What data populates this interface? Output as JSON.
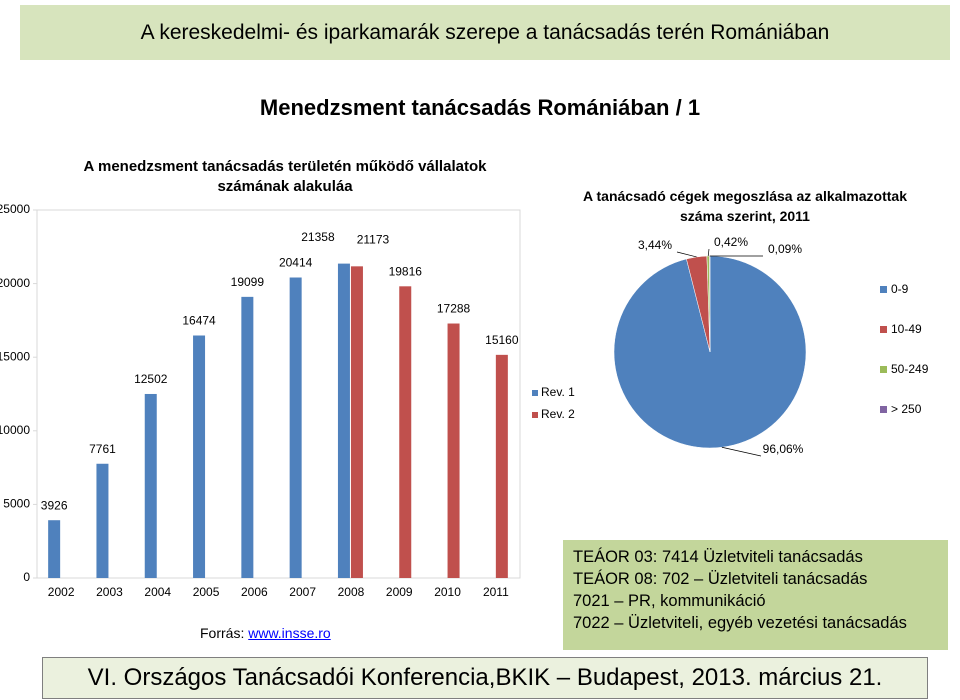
{
  "header": "A kereskedelmi- és iparkamarák szerepe a tanácsadás terén Romániában",
  "slide_title": "Menedzsment tanácsadás Romániában / 1",
  "chart_data": [
    {
      "type": "bar",
      "title": "A menedzsment tanácsadás területén működő vállalatok számának alakuláa",
      "categories": [
        "2002",
        "2003",
        "2004",
        "2005",
        "2006",
        "2007",
        "2008",
        "2009",
        "2010",
        "2011"
      ],
      "series": [
        {
          "name": "Rev. 1",
          "color": "#4f81bd",
          "values": [
            3926,
            7761,
            12502,
            16474,
            19099,
            20414,
            21358,
            null,
            null,
            null
          ]
        },
        {
          "name": "Rev. 2",
          "color": "#c0504d",
          "values": [
            null,
            null,
            null,
            null,
            null,
            null,
            21173,
            19816,
            17288,
            15160
          ]
        }
      ],
      "ylim": [
        0,
        25000
      ],
      "yticks": [
        0,
        5000,
        10000,
        15000,
        20000,
        25000
      ],
      "grid": false
    },
    {
      "type": "pie",
      "title": "A tanácsadó cégek megoszlása az alkalmazottak száma szerint, 2011",
      "categories": [
        "0-9",
        "10-49",
        "50-249",
        "> 250"
      ],
      "values": [
        96.06,
        3.44,
        0.42,
        0.09
      ],
      "value_labels": [
        "96,06%",
        "3,44%",
        "0,42%",
        "0,09%"
      ],
      "colors": [
        "#4f81bd",
        "#c0504d",
        "#9bbb59",
        "#8064a2"
      ]
    }
  ],
  "source": {
    "label": "Forrás:",
    "link": "www.insse.ro"
  },
  "notes": [
    "TEÁOR 03: 7414 Üzletviteli tanácsadás",
    "TEÁOR 08: 702 – Üzletviteli tanácsadás",
    "7021 – PR, kommunikáció",
    "7022 – Üzletviteli, egyéb vezetési tanácsadás"
  ],
  "footer": "VI. Országos Tanácsadói Konferencia,BKIK – Budapest, 2013. március 21."
}
